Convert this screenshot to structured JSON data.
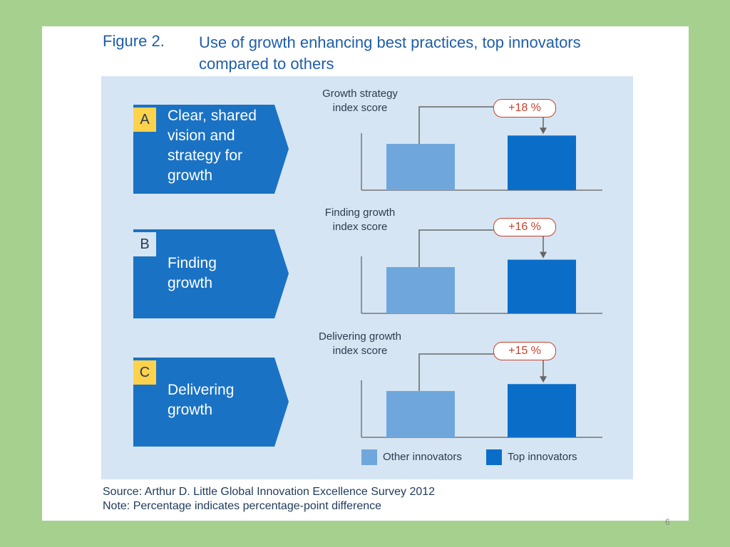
{
  "figure": {
    "number": "Figure 2.",
    "title": "Use of growth enhancing best practices, top innovators compared to others"
  },
  "colors": {
    "other": "#6fa7dc",
    "top": "#0a6ec8",
    "chevron": "#1a72c4",
    "letter_box": "#ffd24c",
    "badge": "#c9402b"
  },
  "chart_data": {
    "type": "bar",
    "categories": [
      "Other innovators",
      "Top innovators"
    ],
    "panels": [
      {
        "letter": "A",
        "practice": "Clear, shared\nvision and\nstrategy for\ngrowth",
        "metric": "Growth strategy\nindex score",
        "difference_label": "+18 %",
        "values": [
          100,
          118
        ]
      },
      {
        "letter": "B",
        "practice": "Finding\ngrowth",
        "metric": "Finding growth\nindex score",
        "difference_label": "+16 %",
        "values": [
          100,
          116
        ]
      },
      {
        "letter": "C",
        "practice": "Delivering\ngrowth",
        "metric": "Delivering growth\nindex score",
        "difference_label": "+15 %",
        "values": [
          100,
          115
        ]
      }
    ],
    "legend": [
      "Other innovators",
      "Top innovators"
    ],
    "legend_position": "bottom-right",
    "grid": false
  },
  "source_note": "Source: Arthur D. Little Global Innovation Excellence Survey 2012\nNote: Percentage indicates percentage-point difference",
  "page_number": "6"
}
